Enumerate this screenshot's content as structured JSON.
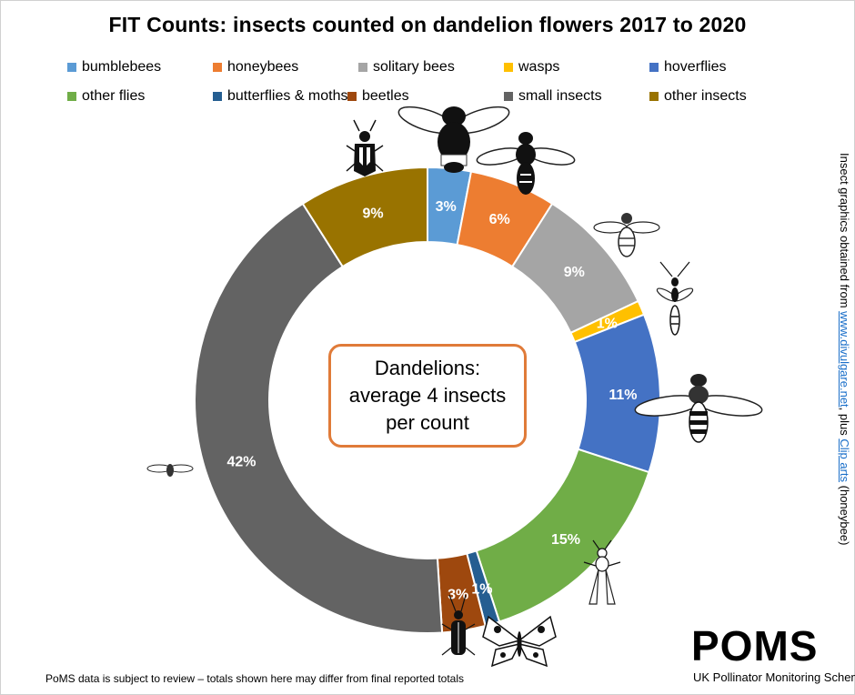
{
  "chart_data": {
    "type": "donut",
    "title": "FIT Counts: insects counted on dandelion flowers 2017 to 2020",
    "legend_position": "top",
    "series": [
      {
        "name": "bumblebees",
        "value": 3,
        "label": "3%",
        "color": "#5b9bd5"
      },
      {
        "name": "honeybees",
        "value": 6,
        "label": "6%",
        "color": "#ed7d31"
      },
      {
        "name": "solitary bees",
        "value": 9,
        "label": "9%",
        "color": "#a5a5a5"
      },
      {
        "name": "wasps",
        "value": 1,
        "label": "1%",
        "color": "#ffc000"
      },
      {
        "name": "hoverflies",
        "value": 11,
        "label": "11%",
        "color": "#4472c4"
      },
      {
        "name": "other flies",
        "value": 15,
        "label": "15%",
        "color": "#70ad47"
      },
      {
        "name": "butterflies & moths",
        "value": 1,
        "label": "1%",
        "color": "#255e91"
      },
      {
        "name": "beetles",
        "value": 3,
        "label": "3%",
        "color": "#9e480e"
      },
      {
        "name": "small insects",
        "value": 42,
        "label": "42%",
        "color": "#636363"
      },
      {
        "name": "other insects",
        "value": 9,
        "label": "9%",
        "color": "#997300"
      }
    ],
    "center_annotation": [
      "Dandelions:",
      "average 4 insects",
      "per count"
    ]
  },
  "credit": {
    "prefix": "Insect graphics obtained from ",
    "link1": "www.divulgare.net",
    "middle": ", plus ",
    "link2": "Clip arts",
    "suffix": " (honeybee)"
  },
  "footer": "PoMS data is subject to review – totals shown here may differ from final reported totals",
  "logo": {
    "word": "POMS",
    "subtitle": "UK Pollinator Monitoring Scheme"
  }
}
